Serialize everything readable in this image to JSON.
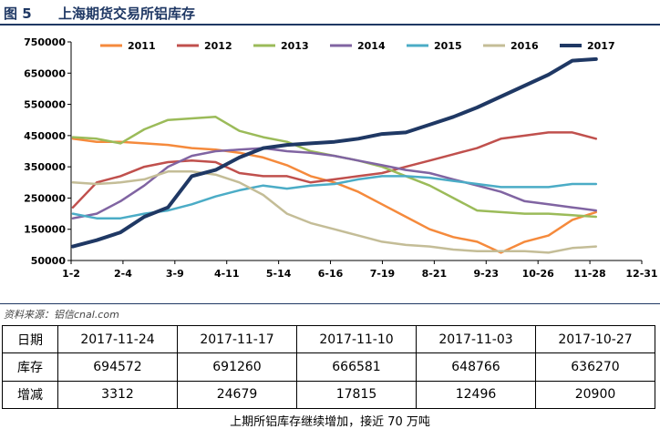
{
  "figure": {
    "number": "图 5",
    "title": "上海期货交易所铝库存",
    "source": "资料来源：铝信cnal.com",
    "caption": "上期所铝库存继续增加，接近 70 万吨"
  },
  "chart_data": {
    "type": "line",
    "x_tick_labels": [
      "1-2",
      "2-4",
      "3-9",
      "4-11",
      "5-14",
      "6-16",
      "7-19",
      "8-21",
      "9-23",
      "10-26",
      "11-28",
      "12-31"
    ],
    "ylim": [
      50000,
      750000
    ],
    "y_ticks": [
      50000,
      150000,
      250000,
      350000,
      450000,
      550000,
      650000,
      750000
    ],
    "y_tick_labels": [
      "50000",
      "150000",
      "250000",
      "350000",
      "450000",
      "550000",
      "650000",
      "750000"
    ],
    "grid": false,
    "legend_position": "top",
    "series": [
      {
        "name": "2011",
        "color": "#f58a3c",
        "values": [
          440000,
          430000,
          430000,
          425000,
          420000,
          410000,
          405000,
          395000,
          380000,
          355000,
          320000,
          300000,
          270000,
          230000,
          190000,
          150000,
          125000,
          110000,
          75000,
          110000,
          130000,
          180000,
          205000
        ]
      },
      {
        "name": "2012",
        "color": "#c0504d",
        "values": [
          220000,
          300000,
          320000,
          350000,
          365000,
          370000,
          365000,
          330000,
          320000,
          320000,
          300000,
          310000,
          320000,
          330000,
          350000,
          370000,
          390000,
          410000,
          440000,
          450000,
          460000,
          460000,
          440000
        ]
      },
      {
        "name": "2013",
        "color": "#9bbb59",
        "values": [
          445000,
          440000,
          425000,
          470000,
          500000,
          505000,
          510000,
          465000,
          445000,
          430000,
          400000,
          385000,
          370000,
          350000,
          320000,
          290000,
          250000,
          210000,
          205000,
          200000,
          200000,
          195000,
          190000
        ]
      },
      {
        "name": "2014",
        "color": "#8064a2",
        "values": [
          185000,
          200000,
          240000,
          290000,
          350000,
          385000,
          400000,
          405000,
          410000,
          400000,
          395000,
          385000,
          370000,
          355000,
          340000,
          330000,
          310000,
          290000,
          270000,
          240000,
          230000,
          220000,
          210000
        ]
      },
      {
        "name": "2015",
        "color": "#4bacc6",
        "values": [
          200000,
          185000,
          185000,
          200000,
          210000,
          230000,
          255000,
          275000,
          290000,
          280000,
          290000,
          295000,
          310000,
          320000,
          320000,
          315000,
          305000,
          295000,
          285000,
          285000,
          285000,
          295000,
          295000
        ]
      },
      {
        "name": "2016",
        "color": "#c4bd97",
        "values": [
          300000,
          295000,
          300000,
          310000,
          335000,
          335000,
          325000,
          300000,
          260000,
          200000,
          170000,
          150000,
          130000,
          110000,
          100000,
          95000,
          85000,
          80000,
          80000,
          80000,
          75000,
          90000,
          95000
        ]
      },
      {
        "name": "2017",
        "color": "#1f3864",
        "values": [
          95000,
          115000,
          140000,
          190000,
          220000,
          320000,
          340000,
          380000,
          410000,
          420000,
          425000,
          430000,
          440000,
          455000,
          460000,
          485000,
          510000,
          540000,
          575000,
          610000,
          645000,
          690000,
          695000
        ]
      }
    ]
  },
  "table": {
    "header": {
      "label": "日期",
      "cells": [
        "2017-11-24",
        "2017-11-17",
        "2017-11-10",
        "2017-11-03",
        "2017-10-27"
      ]
    },
    "rows": [
      {
        "label": "库存",
        "cells": [
          "694572",
          "691260",
          "666581",
          "648766",
          "636270"
        ]
      },
      {
        "label": "增减",
        "cells": [
          "3312",
          "24679",
          "17815",
          "12496",
          "20900"
        ]
      }
    ]
  }
}
